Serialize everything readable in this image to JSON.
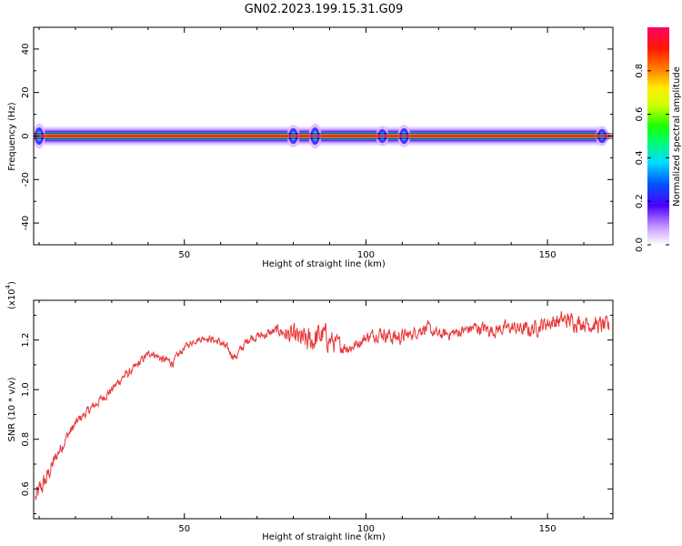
{
  "title": "GN02.2023.199.15.31.G09",
  "colorbar": {
    "label": "Normalized spectral amplitude",
    "ticks": [
      "0.0",
      "0.2",
      "0.4",
      "0.6",
      "0.8"
    ],
    "range": [
      0,
      1
    ]
  },
  "chart_data": [
    {
      "type": "heatmap",
      "xlabel": "Height of straight line (km)",
      "ylabel": "Frequency (Hz)",
      "xlim": [
        8.5,
        168
      ],
      "ylim": [
        -50,
        50
      ],
      "xticks": [
        "50",
        "100",
        "150"
      ],
      "yticks": [
        "-40",
        "-20",
        "0",
        "20",
        "40"
      ],
      "description_of_values": "Narrow band centred near 0 Hz across heights ~9–167 km; peak amplitude ~0.8–0.9 along 0 Hz, wider weaker spread (0.1–0.3) near heights 78–90 km, 104 km and 110 km.",
      "band": [
        {
          "x_start": 9,
          "x_end": 167,
          "freq_center": 0,
          "core_amplitude": 0.85,
          "halo_halfwidth_hz": 3.5
        }
      ],
      "wide_spots": [
        {
          "x": 10,
          "halfwidth_hz": 5
        },
        {
          "x": 80,
          "halfwidth_hz": 4.5
        },
        {
          "x": 86,
          "halfwidth_hz": 5
        },
        {
          "x": 104.5,
          "halfwidth_hz": 4
        },
        {
          "x": 110.5,
          "halfwidth_hz": 4.5
        },
        {
          "x": 165,
          "halfwidth_hz": 4
        }
      ]
    },
    {
      "type": "line",
      "xlabel": "Height of straight line (km)",
      "ylabel": "SNR (10 * v/v)",
      "yscale_label": "(x10",
      "yscale_exp": "4",
      "yscale_close": ")",
      "xlim": [
        8.5,
        168
      ],
      "ylim": [
        0.48,
        1.36
      ],
      "xticks": [
        "50",
        "100",
        "150"
      ],
      "yticks": [
        "0.6",
        "0.8",
        "1.0",
        "1.2"
      ],
      "series": [
        {
          "color": "#e8393a",
          "x": [
            9,
            12,
            15,
            18,
            21,
            24,
            27,
            30,
            33,
            36,
            39,
            41,
            44,
            47,
            50,
            53,
            56,
            60,
            64,
            68,
            72,
            76,
            80,
            84,
            88,
            92,
            96,
            100,
            104,
            108,
            112,
            116,
            120,
            125,
            130,
            135,
            140,
            145,
            150,
            155,
            160,
            164,
            167
          ],
          "y": [
            0.56,
            0.64,
            0.74,
            0.82,
            0.88,
            0.92,
            0.96,
            1.0,
            1.05,
            1.08,
            1.13,
            1.15,
            1.12,
            1.11,
            1.17,
            1.2,
            1.21,
            1.19,
            1.13,
            1.21,
            1.22,
            1.24,
            1.21,
            1.19,
            1.22,
            1.18,
            1.17,
            1.21,
            1.23,
            1.21,
            1.22,
            1.25,
            1.22,
            1.23,
            1.25,
            1.24,
            1.25,
            1.24,
            1.27,
            1.28,
            1.27,
            1.26,
            1.25
          ],
          "noise": [
            0.05,
            0.04,
            0.03,
            0.025,
            0.02,
            0.02,
            0.02,
            0.02,
            0.02,
            0.02,
            0.02,
            0.015,
            0.02,
            0.02,
            0.015,
            0.015,
            0.015,
            0.02,
            0.02,
            0.02,
            0.02,
            0.025,
            0.05,
            0.06,
            0.06,
            0.04,
            0.025,
            0.025,
            0.03,
            0.04,
            0.025,
            0.03,
            0.025,
            0.025,
            0.03,
            0.03,
            0.03,
            0.035,
            0.035,
            0.04,
            0.035,
            0.04,
            0.04
          ]
        }
      ]
    }
  ]
}
